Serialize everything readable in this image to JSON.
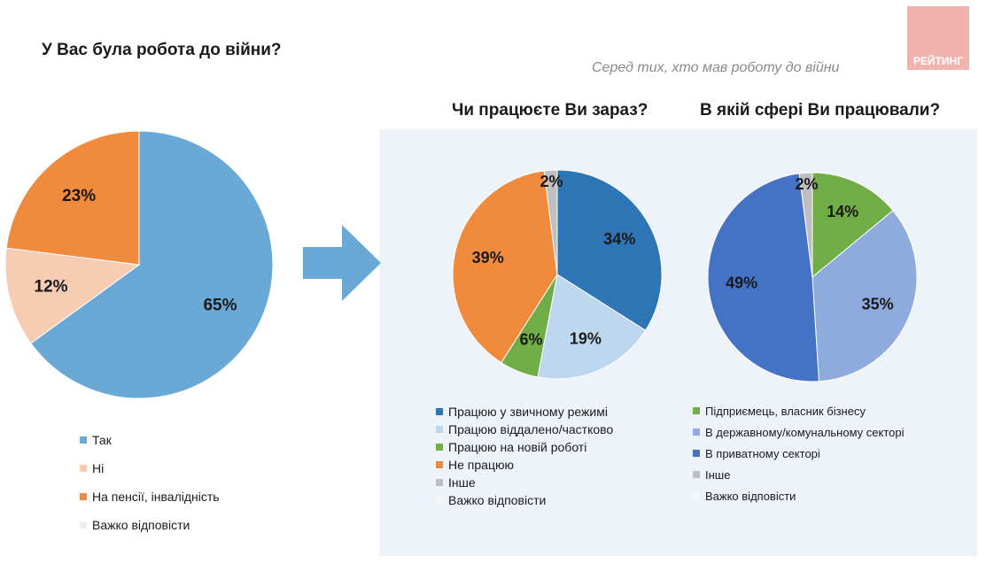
{
  "logo_text": "РЕЙТИНГ",
  "subtitle": "Серед тих, хто мав роботу до війни",
  "chart_data": [
    {
      "type": "pie",
      "title": "У Вас була робота до війни?",
      "slices": [
        {
          "label": "Так",
          "value": 65,
          "label_text": "65%",
          "color": "#6aa9d6"
        },
        {
          "label": "Ні",
          "value": 12,
          "label_text": "12%",
          "color": "#f6ccb2"
        },
        {
          "label": "На пенсії, інвалідність",
          "value": 23,
          "label_text": "23%",
          "color": "#f08a3c"
        },
        {
          "label": "Важко відповісти",
          "value": 0,
          "label_text": "",
          "color": "#eeeeee"
        }
      ]
    },
    {
      "type": "pie",
      "title": "Чи працюєте Ви зараз?",
      "slices": [
        {
          "label": "Працюю у звичному режимі",
          "value": 34,
          "label_text": "34%",
          "color": "#2e75b6"
        },
        {
          "label": "Працюю віддалено/частково",
          "value": 19,
          "label_text": "19%",
          "color": "#bdd7ee"
        },
        {
          "label": "Працюю на новій роботі",
          "value": 6,
          "label_text": "6%",
          "color": "#70ad47"
        },
        {
          "label": "Не працюю",
          "value": 39,
          "label_text": "39%",
          "color": "#f08a3c"
        },
        {
          "label": "Інше",
          "value": 2,
          "label_text": "2%",
          "color": "#bfbfbf"
        },
        {
          "label": "Важко відповісти",
          "value": 0,
          "label_text": "",
          "color": "#f7f7f7"
        }
      ]
    },
    {
      "type": "pie",
      "title": "В якій сфері Ви працювали?",
      "slices": [
        {
          "label": "Підприємець, власник бізнесу",
          "value": 14,
          "label_text": "14%",
          "color": "#70ad47"
        },
        {
          "label": "В державному/комунальному секторі",
          "value": 35,
          "label_text": "35%",
          "color": "#8faadc"
        },
        {
          "label": "В приватному секторі",
          "value": 49,
          "label_text": "49%",
          "color": "#4472c4"
        },
        {
          "label": "Інше",
          "value": 2,
          "label_text": "2%",
          "color": "#bfbfbf"
        },
        {
          "label": "Важко відповісти",
          "value": 0,
          "label_text": "",
          "color": "#f7f7f7"
        }
      ]
    }
  ]
}
